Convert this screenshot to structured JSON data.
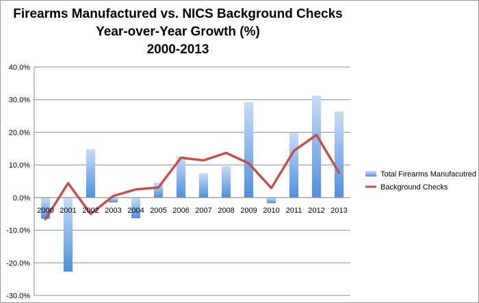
{
  "chart_data": {
    "type": "bar",
    "title": [
      "Firearms Manufactured vs. NICS Background Checks",
      "Year-over-Year Growth (%)",
      "2000-2013"
    ],
    "xlabel": "",
    "ylabel": "",
    "ylim": [
      -30,
      40
    ],
    "yticks": [
      "-30.0%",
      "-20.0%",
      "-10.0%",
      "0.0%",
      "10.0%",
      "20.0%",
      "30.0%",
      "40.0%"
    ],
    "grid": true,
    "legend_position": "right",
    "categories": [
      "2000",
      "2001",
      "2002",
      "2003",
      "2004",
      "2005",
      "2006",
      "2007",
      "2008",
      "2009",
      "2010",
      "2011",
      "2012",
      "2013"
    ],
    "series": [
      {
        "name": "Total Firearms Manufacutred",
        "kind": "bar",
        "color": "#7fb0ea",
        "values": [
          -6.5,
          -22.7,
          14.8,
          -1.5,
          -6.3,
          4.6,
          12.6,
          7.5,
          9.6,
          29.3,
          -1.7,
          19.9,
          31.2,
          26.4
        ]
      },
      {
        "name": "Background Checks",
        "kind": "line",
        "color": "#c0504d",
        "values": [
          -6.6,
          4.4,
          -5.0,
          0.5,
          2.5,
          3.1,
          12.2,
          11.4,
          13.7,
          10.5,
          2.9,
          14.3,
          19.2,
          7.6
        ]
      }
    ]
  }
}
